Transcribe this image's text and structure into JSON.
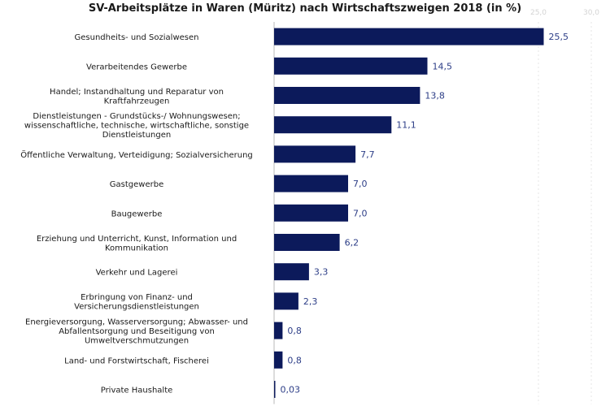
{
  "chart_data": {
    "type": "bar",
    "orientation": "horizontal",
    "title": "SV-Arbeitsplätze in Waren (Müritz) nach Wirtschaftszweigen 2018 (in %)",
    "xlabel": "",
    "ylabel": "",
    "xlim": [
      0,
      30
    ],
    "grid": true,
    "categories": [
      [
        "Gesundheits- und Sozialwesen"
      ],
      [
        "Verarbeitendes Gewerbe"
      ],
      [
        "Handel; Instandhaltung und Reparatur von",
        "Kraftfahrzeugen"
      ],
      [
        "Dienstleistungen - Grundstücks-/ Wohnungswesen;",
        "wissenschaftliche, technische, wirtschaftliche, sonstige",
        "Dienstleistungen"
      ],
      [
        "Öffentliche Verwaltung, Verteidigung; Sozialversicherung"
      ],
      [
        "Gastgewerbe"
      ],
      [
        "Baugewerbe"
      ],
      [
        "Erziehung und Unterricht, Kunst, Information und",
        "Kommunikation"
      ],
      [
        "Verkehr und Lagerei"
      ],
      [
        "Erbringung von Finanz- und",
        "Versicherungsdienstleistungen"
      ],
      [
        "Energieversorgung, Wasserversorgung; Abwasser- und",
        "Abfallentsorgung und Beseitigung von",
        "Umweltverschmutzungen"
      ],
      [
        "Land- und Forstwirtschaft, Fischerei"
      ],
      [
        "Private Haushalte"
      ]
    ],
    "values": [
      25.5,
      14.5,
      13.8,
      11.1,
      7.7,
      7.0,
      7.0,
      6.2,
      3.3,
      2.3,
      0.8,
      0.8,
      0.03
    ],
    "value_labels": [
      "25,5",
      "14,5",
      "13,8",
      "11,1",
      "7,7",
      "7,0",
      "7,0",
      "6,2",
      "3,3",
      "2,3",
      "0,8",
      "0,8",
      "0,03"
    ],
    "tick_labels_top": [
      {
        "value": 25,
        "label": "25,0"
      },
      {
        "value": 30,
        "label": "30,0"
      }
    ],
    "colors": {
      "bar": "#0c1a5b",
      "value_label": "#2d3e87"
    }
  }
}
